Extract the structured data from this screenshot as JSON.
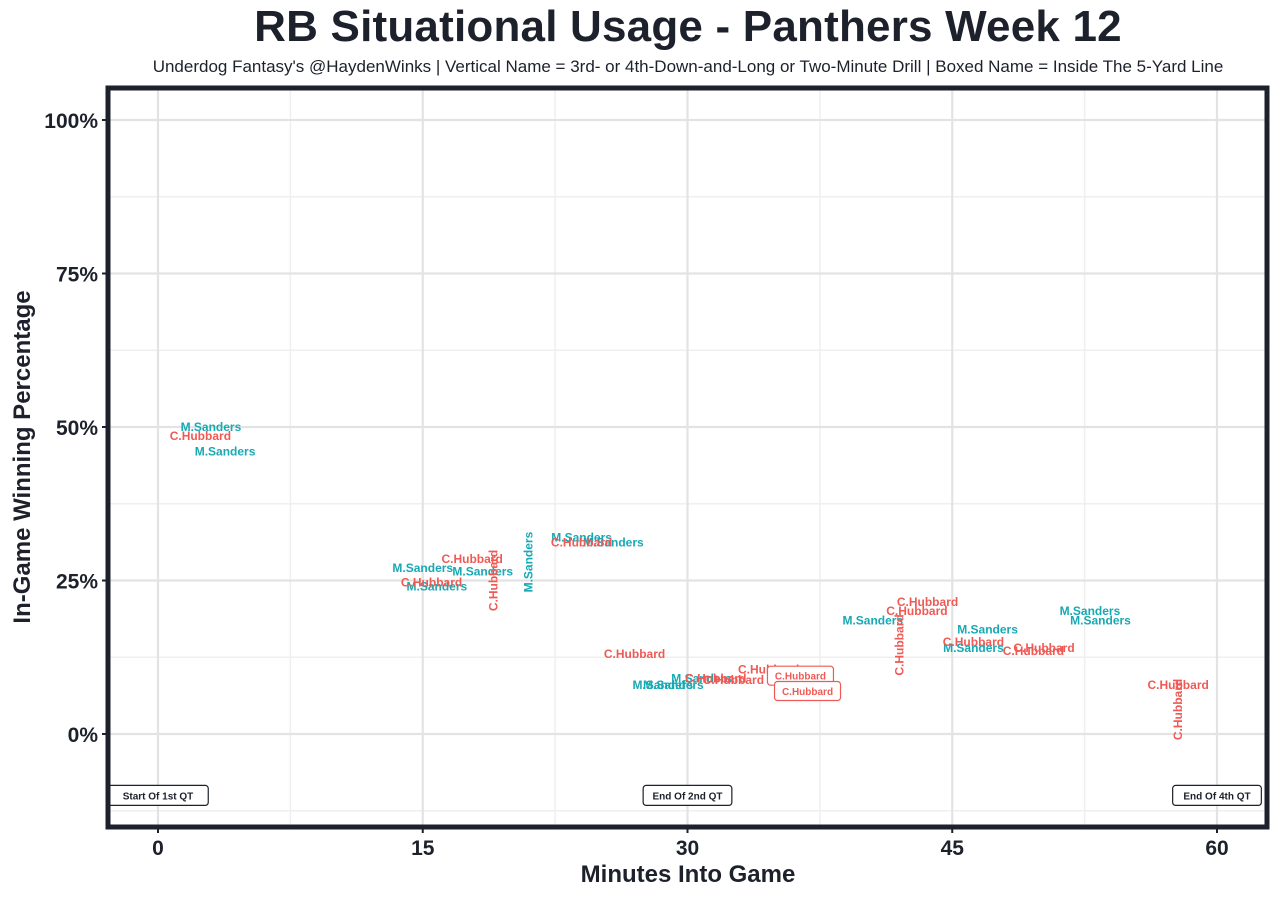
{
  "colors": {
    "frame": "#1d212b",
    "grid_major": "#e3e3e3",
    "grid_minor": "#efefef",
    "sanders": "#17a9b4",
    "hubbard": "#ef5a55",
    "text": "#1d212b"
  },
  "chart_data": {
    "type": "scatter",
    "title": "RB Situational Usage - Panthers Week 12",
    "subtitle": "Underdog Fantasy's @HaydenWinks | Vertical Name = 3rd- or 4th-Down-and-Long or Two-Minute Drill | Boxed Name = Inside The 5-Yard Line",
    "xlabel": "Minutes Into Game",
    "ylabel": "In-Game Winning Percentage",
    "xlim": [
      -3,
      63
    ],
    "ylim": [
      -15,
      103
    ],
    "x_ticks": [
      0,
      15,
      30,
      45,
      60
    ],
    "x_tick_labels": [
      "0",
      "15",
      "30",
      "45",
      "60"
    ],
    "y_ticks": [
      0,
      25,
      50,
      75,
      100
    ],
    "y_tick_labels": [
      "0%",
      "25%",
      "50%",
      "75%",
      "100%"
    ],
    "grid": true,
    "quarter_markers": [
      {
        "x": 0,
        "y": -10,
        "label": "Start Of 1st QT"
      },
      {
        "x": 30,
        "y": -10,
        "label": "End Of 2nd QT"
      },
      {
        "x": 60,
        "y": -10,
        "label": "End Of 4th QT"
      }
    ],
    "series": [
      {
        "name": "M.Sanders",
        "color": "#17a9b4",
        "points": [
          {
            "x": 3.0,
            "y": 50.0,
            "style": "normal"
          },
          {
            "x": 3.8,
            "y": 46.0,
            "style": "normal"
          },
          {
            "x": 15.0,
            "y": 27.0,
            "style": "normal"
          },
          {
            "x": 15.8,
            "y": 24.0,
            "style": "normal"
          },
          {
            "x": 18.4,
            "y": 26.5,
            "style": "normal"
          },
          {
            "x": 21.0,
            "y": 28.0,
            "style": "vertical"
          },
          {
            "x": 24.0,
            "y": 32.0,
            "style": "normal"
          },
          {
            "x": 25.8,
            "y": 31.2,
            "style": "normal"
          },
          {
            "x": 28.6,
            "y": 8.0,
            "style": "normal"
          },
          {
            "x": 29.2,
            "y": 8.0,
            "style": "normal"
          },
          {
            "x": 30.8,
            "y": 9.0,
            "style": "normal"
          },
          {
            "x": 40.5,
            "y": 18.5,
            "style": "normal"
          },
          {
            "x": 47.0,
            "y": 17.0,
            "style": "normal"
          },
          {
            "x": 46.2,
            "y": 14.0,
            "style": "normal"
          },
          {
            "x": 52.8,
            "y": 20.0,
            "style": "normal"
          },
          {
            "x": 53.4,
            "y": 18.5,
            "style": "normal"
          }
        ]
      },
      {
        "name": "C.Hubbard",
        "color": "#ef5a55",
        "points": [
          {
            "x": 2.4,
            "y": 48.5,
            "style": "normal"
          },
          {
            "x": 17.8,
            "y": 28.5,
            "style": "normal"
          },
          {
            "x": 19.0,
            "y": 25.0,
            "style": "vertical"
          },
          {
            "x": 15.5,
            "y": 24.7,
            "style": "normal"
          },
          {
            "x": 24.0,
            "y": 31.2,
            "style": "normal"
          },
          {
            "x": 27.0,
            "y": 13.0,
            "style": "normal"
          },
          {
            "x": 31.6,
            "y": 9.0,
            "style": "normal"
          },
          {
            "x": 32.6,
            "y": 8.8,
            "style": "normal"
          },
          {
            "x": 34.6,
            "y": 10.5,
            "style": "normal"
          },
          {
            "x": 36.4,
            "y": 9.5,
            "style": "boxed"
          },
          {
            "x": 36.8,
            "y": 7.0,
            "style": "boxed"
          },
          {
            "x": 43.6,
            "y": 21.5,
            "style": "normal"
          },
          {
            "x": 43.0,
            "y": 20.0,
            "style": "normal"
          },
          {
            "x": 42.0,
            "y": 14.5,
            "style": "vertical"
          },
          {
            "x": 46.2,
            "y": 15.0,
            "style": "normal"
          },
          {
            "x": 50.2,
            "y": 14.0,
            "style": "normal"
          },
          {
            "x": 49.6,
            "y": 13.5,
            "style": "normal"
          },
          {
            "x": 57.8,
            "y": 8.0,
            "style": "normal"
          },
          {
            "x": 57.8,
            "y": 4.0,
            "style": "vertical"
          }
        ]
      }
    ]
  }
}
